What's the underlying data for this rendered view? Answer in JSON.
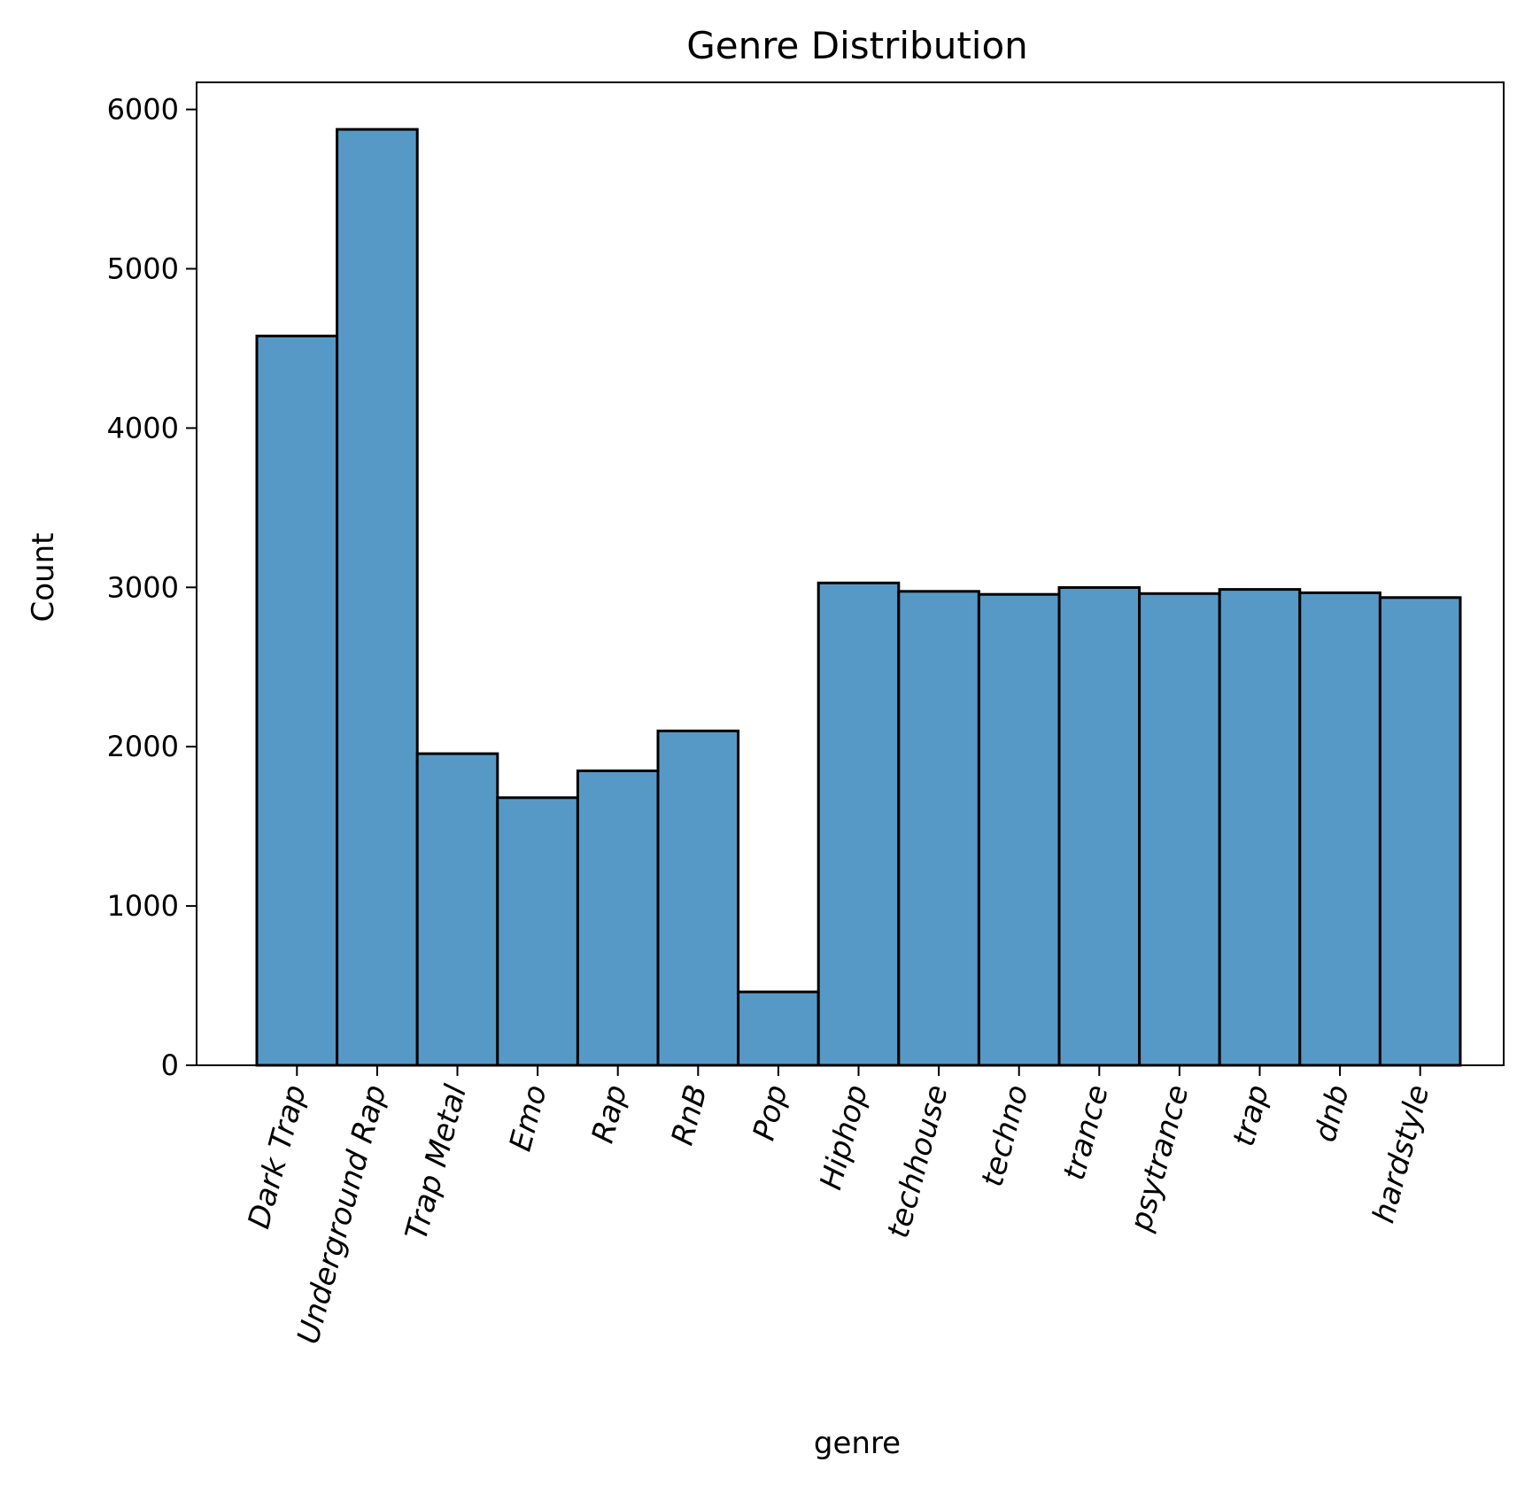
{
  "chart_data": {
    "type": "bar",
    "title": "Genre Distribution",
    "xlabel": "genre",
    "ylabel": "Count",
    "categories": [
      "Dark Trap",
      "Underground Rap",
      "Trap Metal",
      "Emo",
      "Rap",
      "RnB",
      "Pop",
      "Hiphop",
      "techhouse",
      "techno",
      "trance",
      "psytrance",
      "trap",
      "dnb",
      "hardstyle"
    ],
    "values": [
      4578,
      5875,
      1956,
      1680,
      1848,
      2099,
      461,
      3028,
      2975,
      2956,
      2999,
      2961,
      2987,
      2966,
      2936
    ],
    "ylim": [
      0,
      6170
    ],
    "yticks": [
      0,
      1000,
      2000,
      3000,
      4000,
      5000,
      6000
    ],
    "xtick_rotation_deg": 75,
    "bar_color": "#5799c6",
    "edge_color": "#000000",
    "grid": false,
    "legend": "none"
  }
}
